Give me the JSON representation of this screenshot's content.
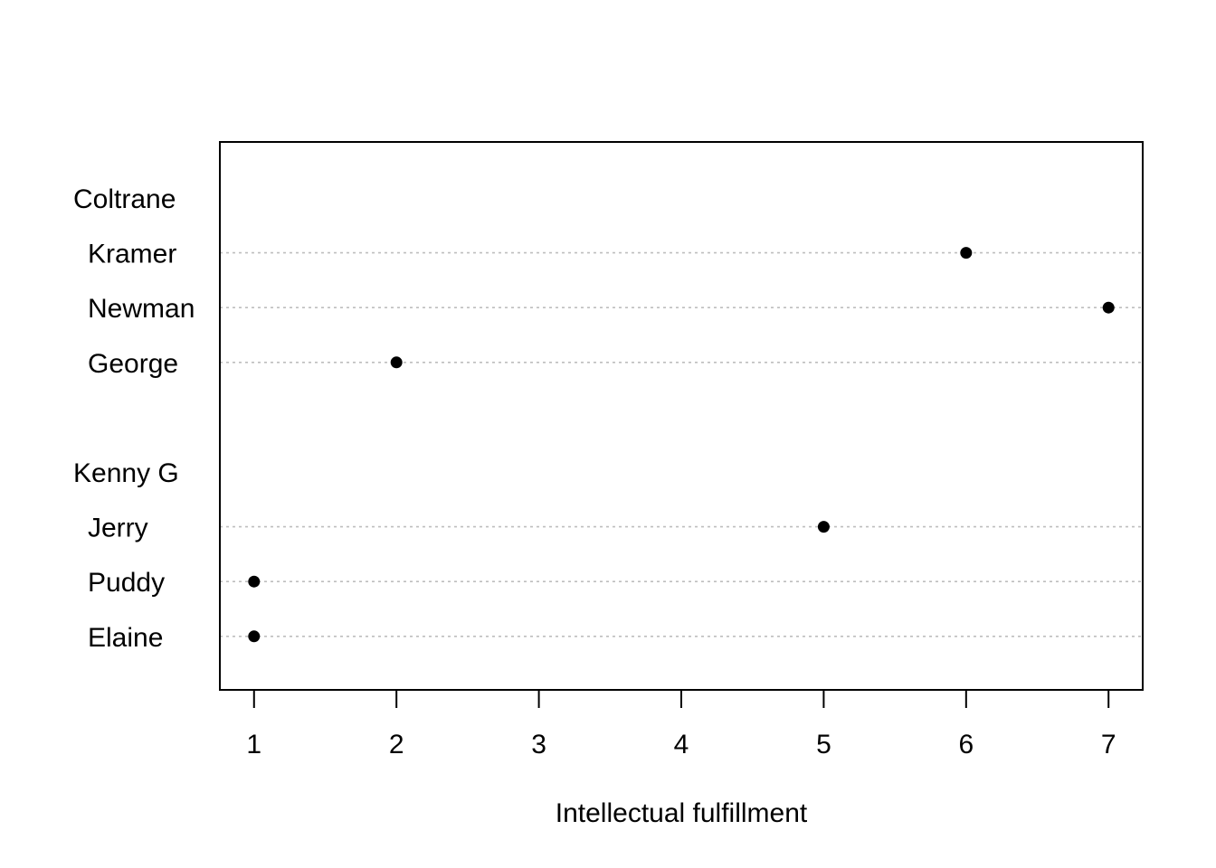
{
  "chart_data": {
    "type": "dotchart",
    "title": "",
    "xlabel": "Intellectual fulfillment",
    "ylabel": "",
    "xlim": [
      0.76,
      7.24
    ],
    "x_ticks": [
      1,
      2,
      3,
      4,
      5,
      6,
      7
    ],
    "grid": "horizontal dotted lines per row",
    "groups": [
      {
        "name": "Coltrane",
        "rows": [
          {
            "label": "Kramer",
            "value": 6
          },
          {
            "label": "Newman",
            "value": 7
          },
          {
            "label": "George",
            "value": 2
          }
        ]
      },
      {
        "name": "Kenny G",
        "rows": [
          {
            "label": "Jerry",
            "value": 5
          },
          {
            "label": "Puddy",
            "value": 1
          },
          {
            "label": "Elaine",
            "value": 1
          }
        ]
      }
    ],
    "colors": {
      "points": "#000000",
      "grid": "#bebebe",
      "frame": "#000000"
    }
  }
}
